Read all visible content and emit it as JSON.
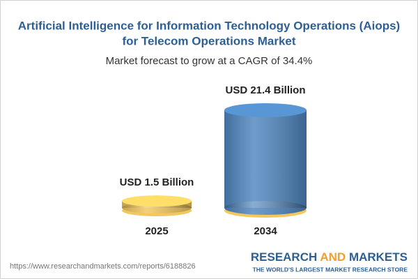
{
  "chart_data": {
    "type": "cylinder",
    "title": "Artificial Intelligence for Information Technology Operations (Aiops)",
    "title_line2": "for Telecom Operations Market",
    "subtitle": "Market forecast to grow at a CAGR of 34.4%",
    "categories": [
      "2025",
      "2034"
    ],
    "values": [
      1.5,
      21.4
    ],
    "value_labels": [
      "USD 1.5 Billion",
      "USD 21.4 Billion"
    ],
    "colors": [
      "#f2c75c",
      "#4f86bf"
    ],
    "base_color": "#f2c75c"
  },
  "source": "https://www.researchandmarkets.com/reports/6188826",
  "brand": {
    "name_1": "RESEARCH",
    "name_2": "AND",
    "name_3": "MARKETS",
    "tagline": "THE WORLD'S LARGEST MARKET RESEARCH STORE"
  }
}
